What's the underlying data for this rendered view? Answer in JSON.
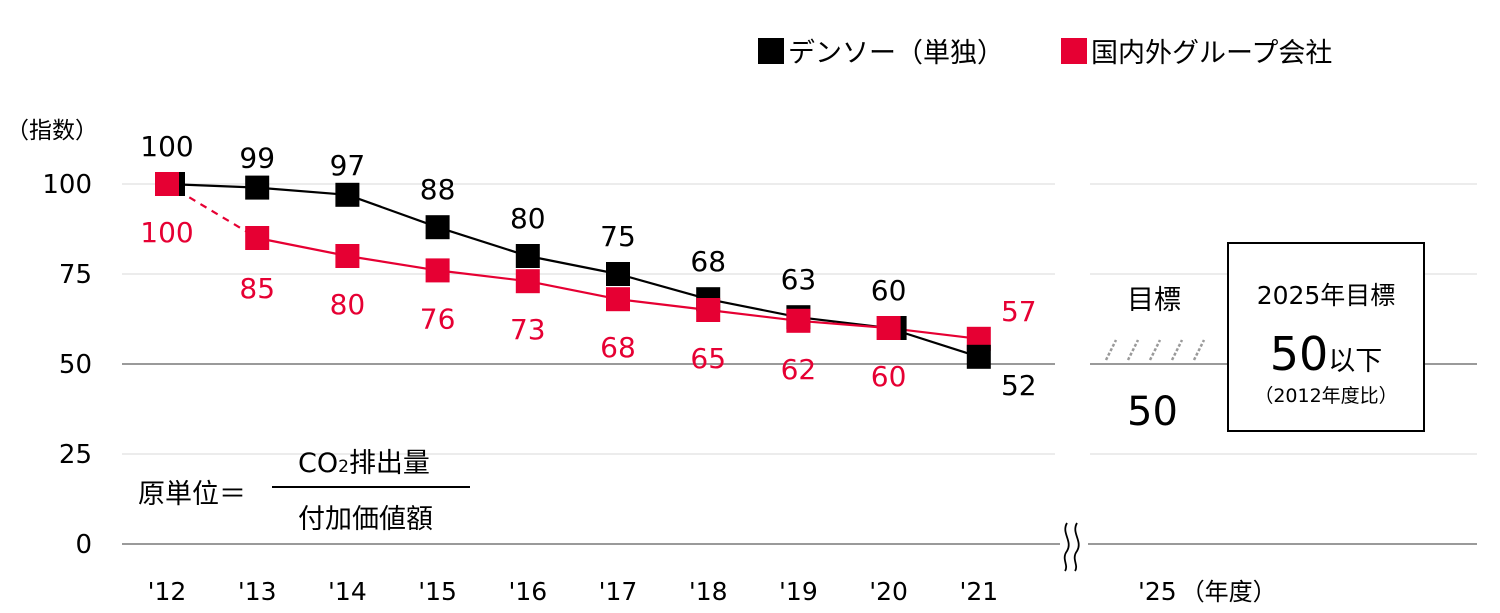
{
  "chart_data": {
    "type": "line",
    "ylabel": "（指数）",
    "xlabel": "（年度）",
    "ylim": [
      0,
      100
    ],
    "yticks": [
      "0",
      "25",
      "50",
      "75",
      "100"
    ],
    "categories": [
      "'12",
      "'13",
      "'14",
      "'15",
      "'16",
      "'17",
      "'18",
      "'19",
      "'20",
      "'21"
    ],
    "target_category": "'25",
    "series": [
      {
        "name": "デンソー（単独）",
        "color": "#000000",
        "values": [
          100,
          99,
          97,
          88,
          80,
          75,
          68,
          63,
          60,
          52
        ],
        "labels": [
          "100",
          "99",
          "97",
          "88",
          "80",
          "75",
          "68",
          "63",
          "60",
          "52"
        ]
      },
      {
        "name": "国内外グループ会社",
        "color": "#e60033",
        "values": [
          100,
          85,
          80,
          76,
          73,
          68,
          65,
          62,
          60,
          57
        ],
        "labels": [
          "100",
          "85",
          "80",
          "76",
          "73",
          "68",
          "65",
          "62",
          "60",
          "57"
        ]
      }
    ],
    "dashed_segment": {
      "series": 1,
      "from_index": 0,
      "to_index": 1
    },
    "target": {
      "label": "目標",
      "value": 50,
      "value_label": "50"
    },
    "formula": {
      "lhs": "原単位＝",
      "numerator_prefix": "CO",
      "numerator_sub": "2",
      "numerator_suffix": "排出量",
      "denominator": "付加価値額"
    },
    "target_box": {
      "line1": "2025年目標",
      "value": "50",
      "suffix": "以下",
      "note": "（2012年度比）"
    }
  }
}
